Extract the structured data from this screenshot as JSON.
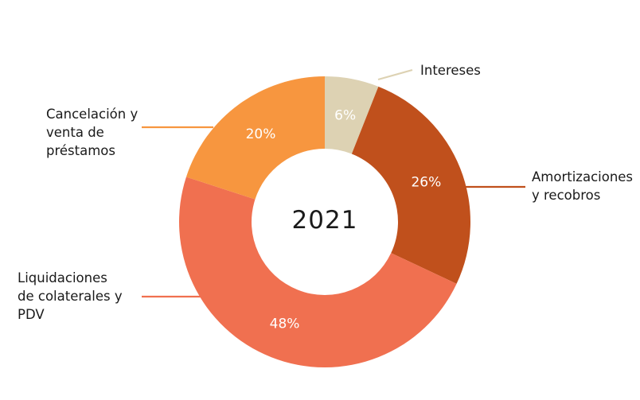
{
  "chart_data": {
    "type": "donut",
    "center_label": "2021",
    "slices": [
      {
        "name": "Intereses",
        "label_lines": [
          "Intereses"
        ],
        "value": 6,
        "value_label": "6%",
        "color": "#ddd2b3"
      },
      {
        "name": "Amortizaciones y recobros",
        "label_lines": [
          "Amortizaciones",
          "y recobros"
        ],
        "value": 26,
        "value_label": "26%",
        "color": "#c0501c"
      },
      {
        "name": "Liquidaciones de colaterales y PDV",
        "label_lines": [
          "Liquidaciones",
          "de colaterales y",
          "PDV"
        ],
        "value": 48,
        "value_label": "48%",
        "color": "#f07050"
      },
      {
        "name": "Cancelación y venta de préstamos",
        "label_lines": [
          "Cancelación y",
          "venta de",
          "préstamos"
        ],
        "value": 20,
        "value_label": "20%",
        "color": "#f7963f"
      }
    ]
  }
}
